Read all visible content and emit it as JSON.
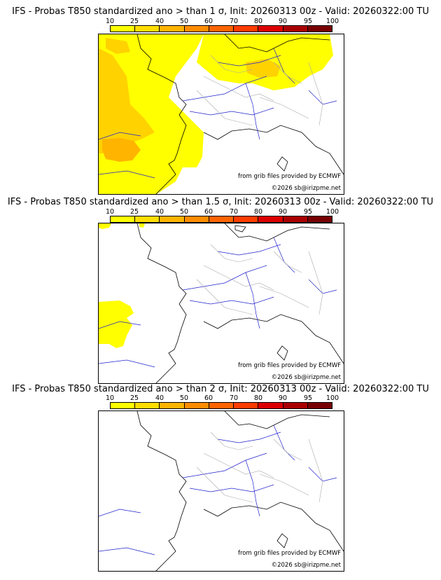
{
  "colorbar": {
    "ticks": [
      "10",
      "25",
      "40",
      "50",
      "60",
      "70",
      "80",
      "90",
      "95",
      "100"
    ],
    "colors": [
      "#ffff00",
      "#ffdd00",
      "#ffb400",
      "#ff8c00",
      "#ff6400",
      "#ff3c00",
      "#dc0000",
      "#aa0000",
      "#780000"
    ]
  },
  "panels": [
    {
      "title": "IFS - Probas T850  standardized ano > than 1 σ, Init: 20260313 00z - Valid: 20260322:00 TU",
      "source": "from grib files provided by ECMWF",
      "copyright": "©2026 sb@irizpme.net"
    },
    {
      "title": "IFS - Probas T850  standardized ano > than 1.5 σ, Init: 20260313 00z - Valid: 20260322:00 TU",
      "source": "from grib files provided by ECMWF",
      "copyright": "©2026 sb@irizpme.net"
    },
    {
      "title": "IFS - Probas T850  standardized ano > than 2 σ, Init: 20260313 00z - Valid: 20260322:00 TU",
      "source": "from grib files provided by ECMWF",
      "copyright": "©2026 sb@irizpme.net"
    }
  ],
  "colors": {
    "coast": "#000000",
    "rivers": "#2222cc",
    "borders": "#aaaaaa",
    "prob_low": "#ffff00",
    "prob_mid": "#ffd200",
    "prob_high": "#ffb400"
  }
}
